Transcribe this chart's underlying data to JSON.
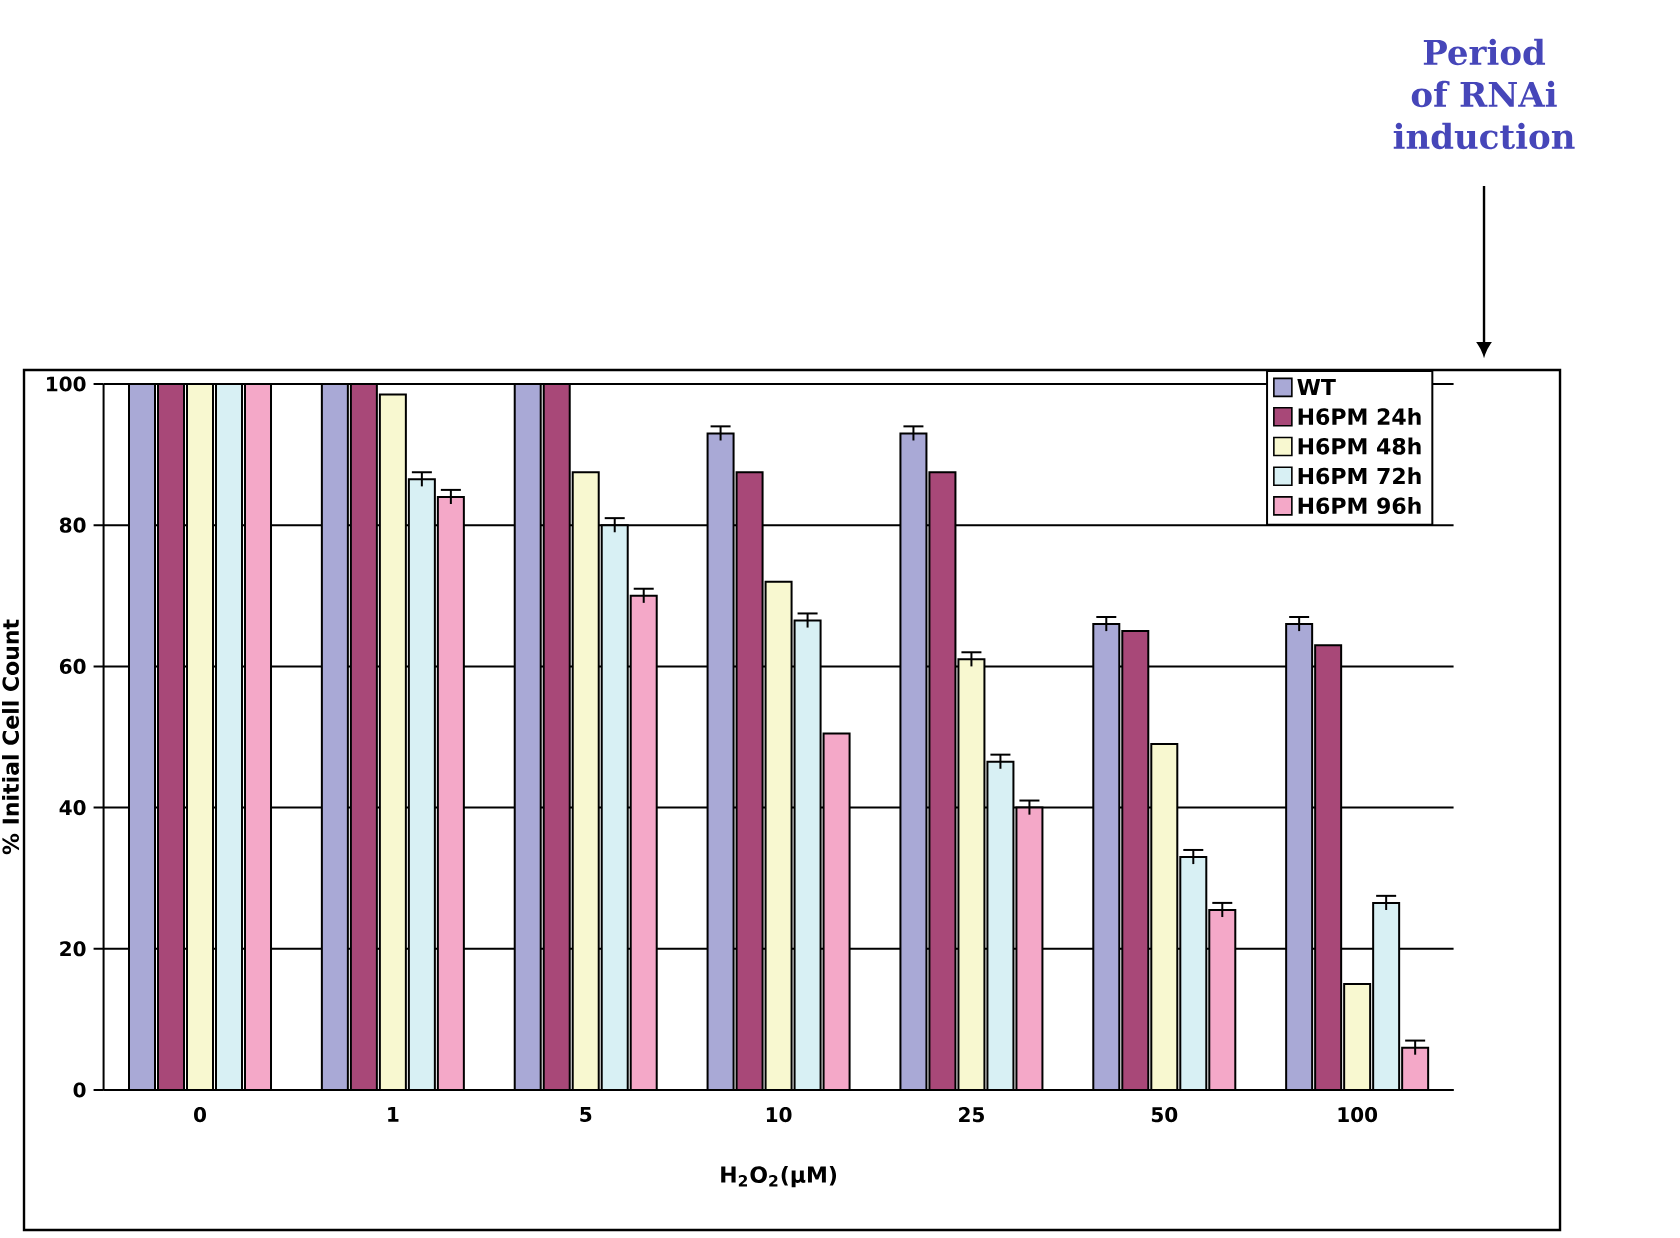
{
  "chart_data": {
    "type": "bar",
    "xlabel": "H$_{2}$O$_{2}$(µM)",
    "ylabel": "% Initial Cell Count",
    "annotations": [
      "Period of RNAi induction"
    ],
    "categories": [
      "0",
      "1",
      "5",
      "10",
      "25",
      "50",
      "100"
    ],
    "series": [
      {
        "name": "WT",
        "color": "#a9a9d6",
        "values": [
          100,
          100,
          100,
          93,
          93,
          66,
          66
        ],
        "errors": [
          null,
          null,
          null,
          1,
          1,
          1,
          1
        ]
      },
      {
        "name": "H6PM 24h",
        "color": "#a84878",
        "values": [
          100,
          100,
          100,
          87.5,
          87.5,
          65,
          63
        ],
        "errors": [
          null,
          null,
          null,
          null,
          null,
          null,
          null
        ]
      },
      {
        "name": "H6PM 48h",
        "color": "#f8f8d0",
        "values": [
          100,
          98.5,
          87.5,
          72,
          61,
          49,
          15
        ],
        "errors": [
          null,
          null,
          null,
          null,
          1,
          null,
          null
        ]
      },
      {
        "name": "H6PM 72h",
        "color": "#d8f0f4",
        "values": [
          100,
          86.5,
          80,
          66.5,
          46.5,
          33,
          26.5
        ],
        "errors": [
          null,
          1,
          1,
          1,
          1,
          1,
          1
        ]
      },
      {
        "name": "H6PM 96h",
        "color": "#f4a8c8",
        "values": [
          100,
          84,
          70,
          50.5,
          40,
          25.5,
          6
        ],
        "errors": [
          null,
          1,
          1,
          null,
          1,
          1,
          1
        ]
      }
    ],
    "ylim": [
      0,
      100
    ],
    "yticks": [
      0,
      20,
      40,
      60,
      80,
      100
    ],
    "grid": "y",
    "legend": "top right"
  }
}
